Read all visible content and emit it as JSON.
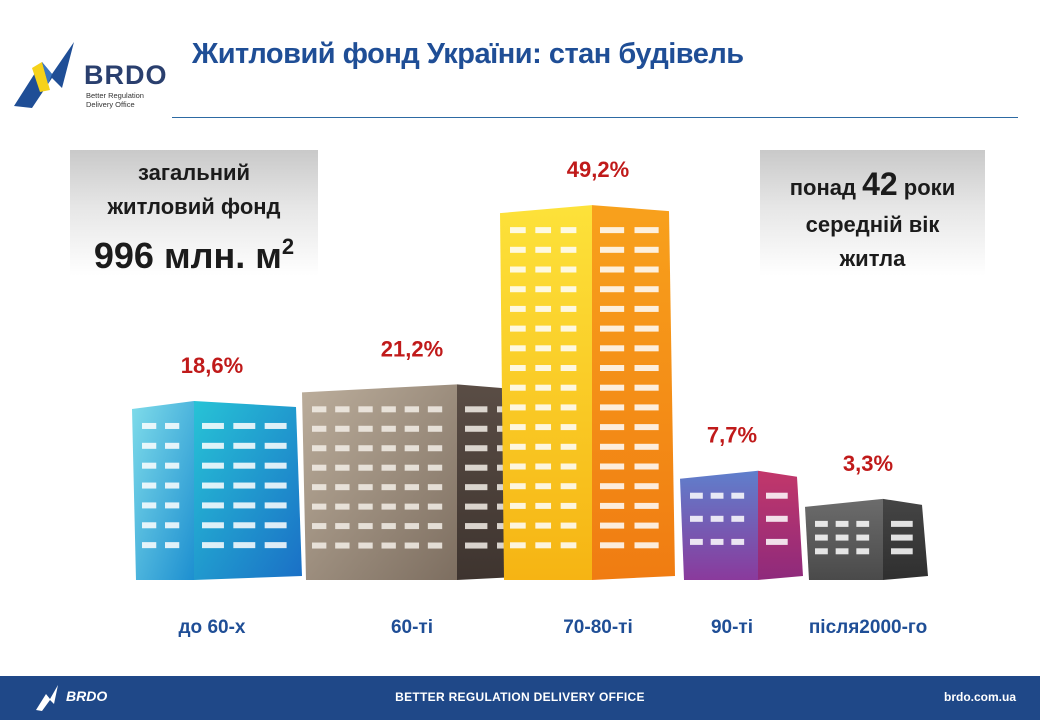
{
  "header": {
    "title": "Житловий фонд України: стан будівель",
    "logo_text": "BRDO",
    "logo_subtitle": "Better Regulation Delivery Office"
  },
  "info_left": {
    "line1": "загальний",
    "line2": "житловий фонд",
    "value": "996 млн. м",
    "superscript": "2"
  },
  "info_right": {
    "line1_prefix": "понад ",
    "line1_number": "42",
    "line1_suffix": " роки",
    "line2": "середній вік",
    "line3": "житла"
  },
  "chart_data": {
    "type": "bar",
    "categories": [
      "до 60-х",
      "60-ті",
      "70-80-ті",
      "90-ті",
      "після2000-го"
    ],
    "values": [
      18.6,
      21.2,
      49.2,
      7.7,
      3.3
    ],
    "value_labels": [
      "18,6%",
      "21,2%",
      "49,2%",
      "7,7%",
      "3,3%"
    ],
    "unit": "%",
    "colors": {
      "teal": "#1ea7c9",
      "taupe": "#8f7d6c",
      "orange": "#f39a1c",
      "purple": "#6b4a9c",
      "gray": "#5b5b5b",
      "label_red": "#c01a1a",
      "category_blue": "#1f4e96"
    }
  },
  "footer": {
    "logo_text": "BRDO",
    "center": "BETTER REGULATION DELIVERY OFFICE",
    "url": "brdo.com.ua"
  }
}
